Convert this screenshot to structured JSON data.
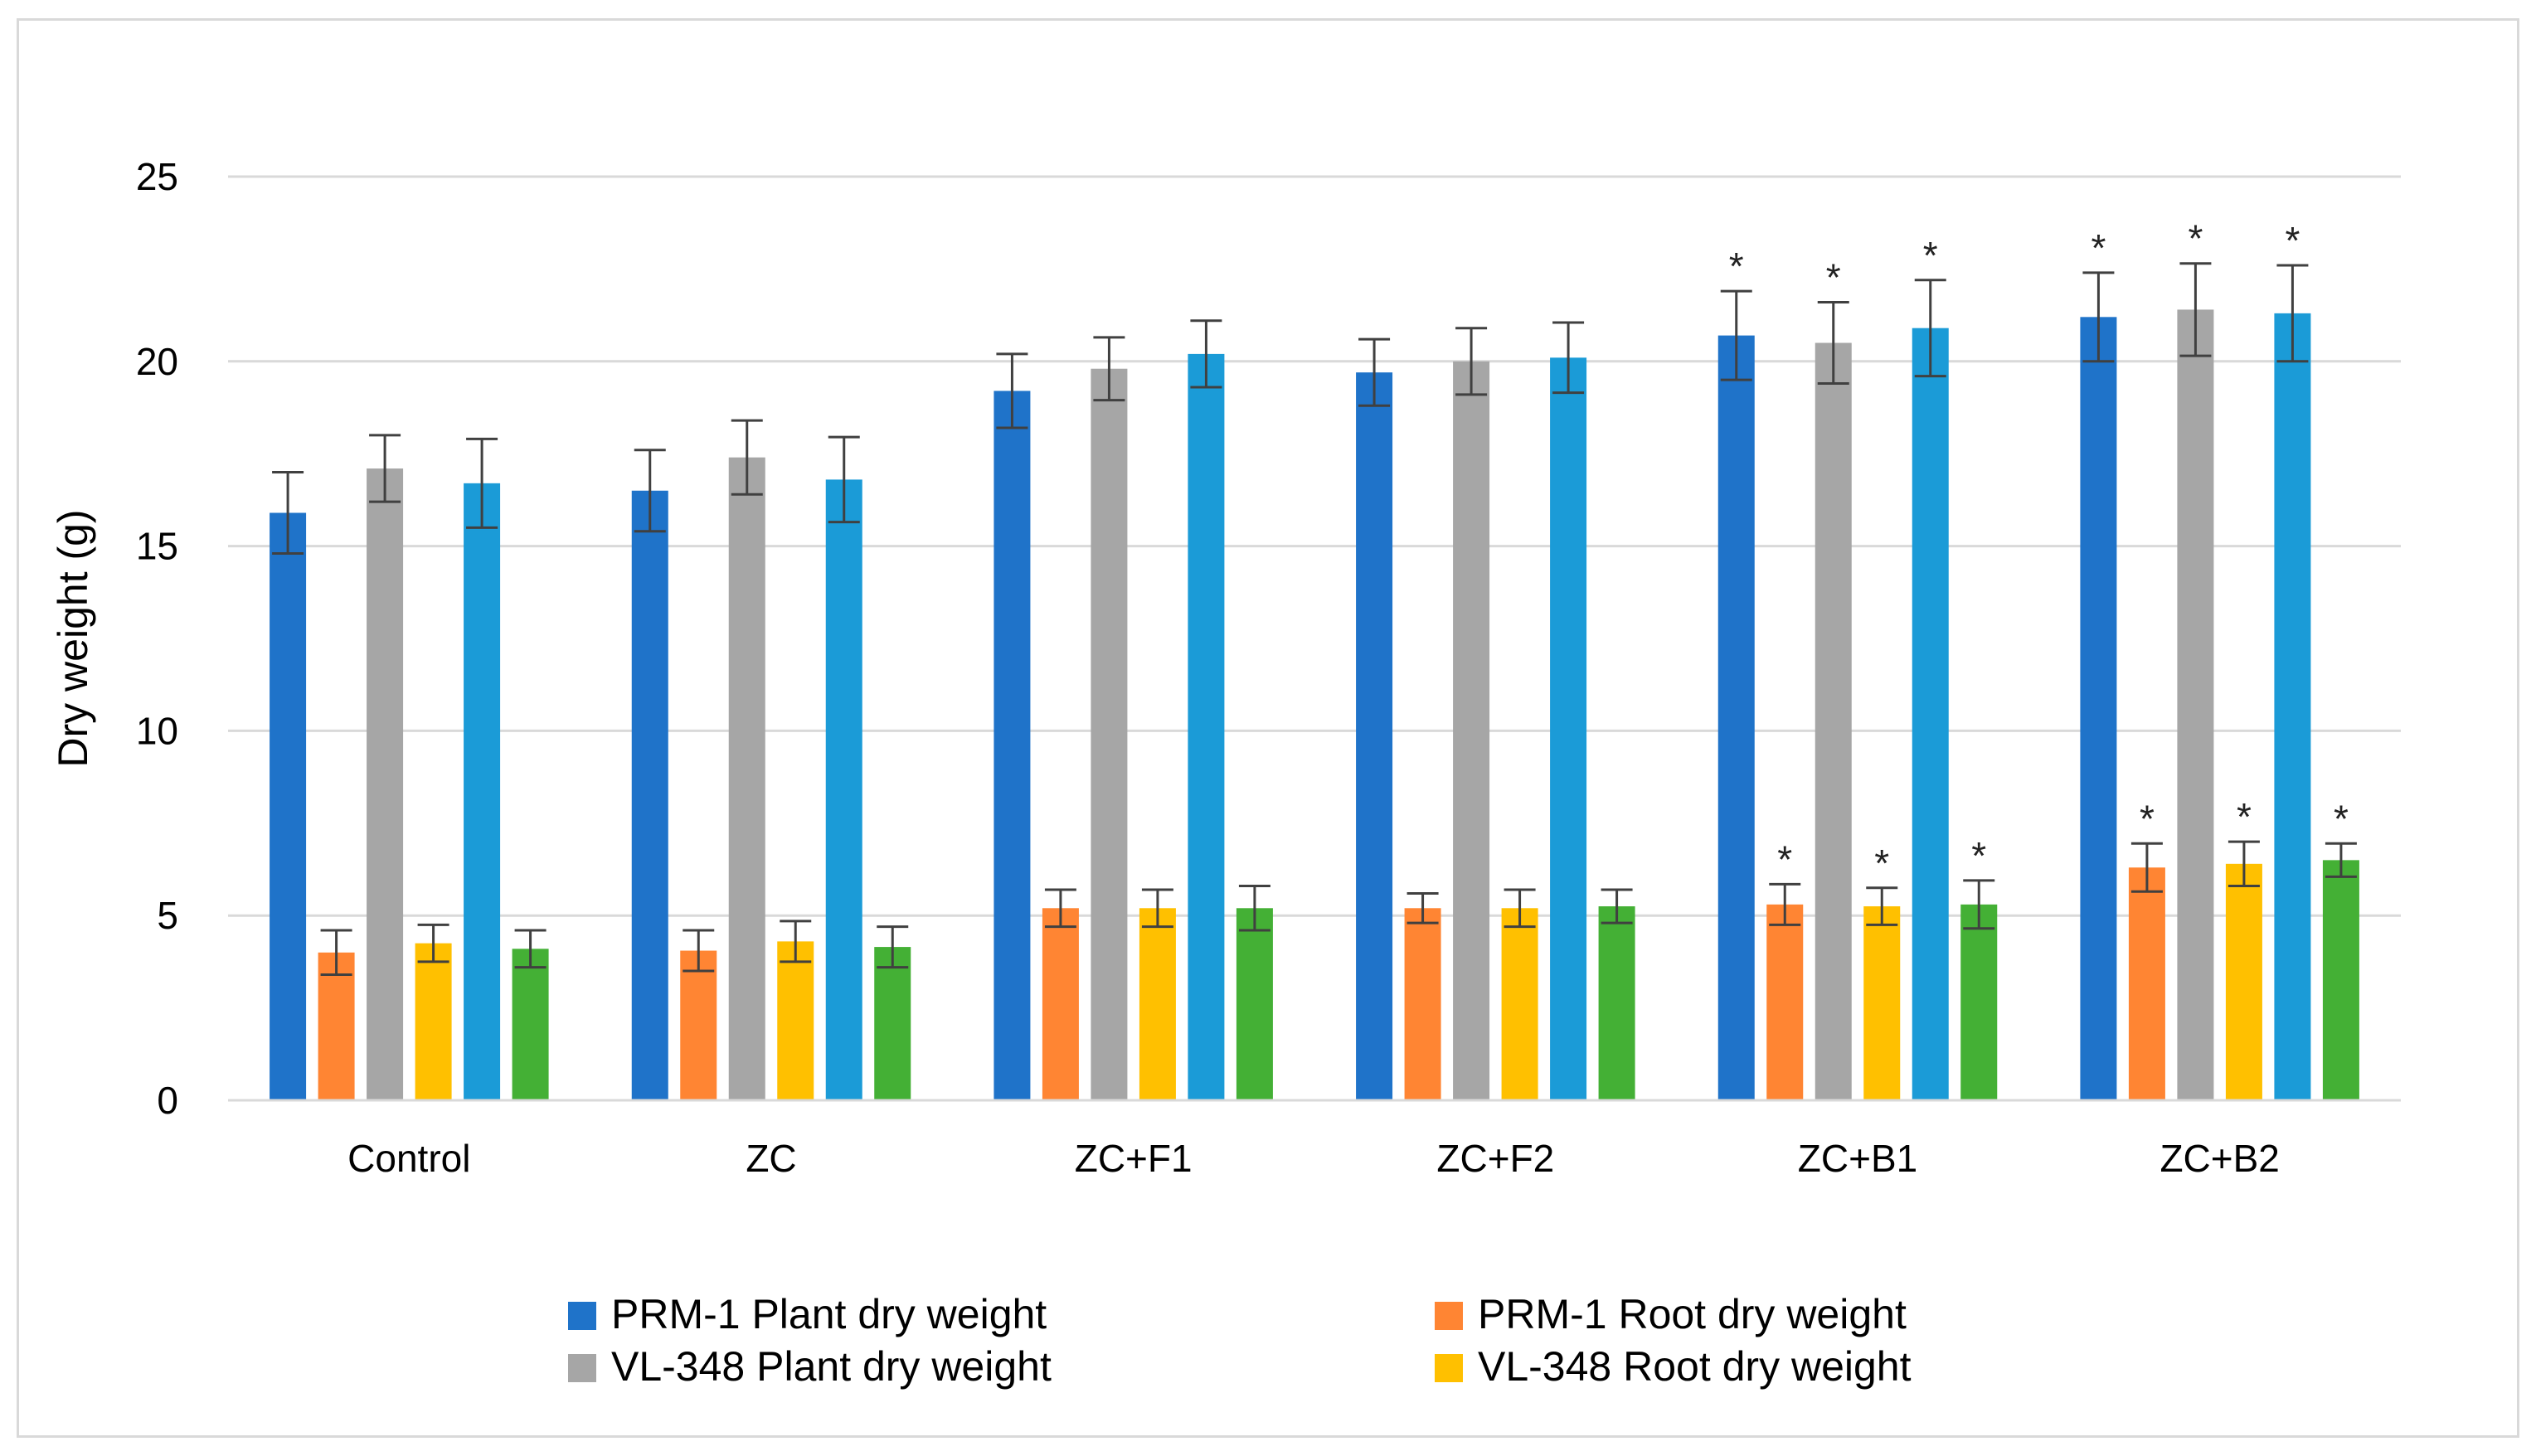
{
  "chart_data": {
    "type": "bar",
    "title": "",
    "xlabel": "",
    "ylabel": "Dry weight (g)",
    "ylim": [
      0,
      25
    ],
    "yticks": [
      0,
      5,
      10,
      15,
      20,
      25
    ],
    "grid": true,
    "legend_position": "bottom",
    "categories": [
      "Control",
      "ZC",
      "ZC+F1",
      "ZC+F2",
      "ZC+B1",
      "ZC+B2"
    ],
    "series": [
      {
        "name": "PRM-1 Plant dry weight",
        "color": "#1f73c9",
        "in_legend": true,
        "values": [
          15.9,
          16.5,
          19.2,
          19.7,
          20.7,
          21.2
        ],
        "errors": [
          1.1,
          1.1,
          1.0,
          0.9,
          1.2,
          1.2
        ],
        "significant": [
          false,
          false,
          false,
          false,
          true,
          true
        ]
      },
      {
        "name": "PRM-1 Root dry weight",
        "color": "#ff8533",
        "in_legend": true,
        "values": [
          4.0,
          4.05,
          5.2,
          5.2,
          5.3,
          6.3
        ],
        "errors": [
          0.6,
          0.55,
          0.5,
          0.4,
          0.55,
          0.65
        ],
        "significant": [
          false,
          false,
          false,
          false,
          true,
          true
        ]
      },
      {
        "name": "VL-348 Plant dry weight",
        "color": "#a6a6a6",
        "in_legend": true,
        "values": [
          17.1,
          17.4,
          19.8,
          20.0,
          20.5,
          21.4
        ],
        "errors": [
          0.9,
          1.0,
          0.85,
          0.9,
          1.1,
          1.25
        ],
        "significant": [
          false,
          false,
          false,
          false,
          true,
          true
        ]
      },
      {
        "name": "VL-348 Root dry weight",
        "color": "#ffc000",
        "in_legend": true,
        "values": [
          4.25,
          4.3,
          5.2,
          5.2,
          5.25,
          6.4
        ],
        "errors": [
          0.5,
          0.55,
          0.5,
          0.5,
          0.5,
          0.6
        ],
        "significant": [
          false,
          false,
          false,
          false,
          true,
          true
        ]
      },
      {
        "name": "",
        "color": "#1b9bd7",
        "in_legend": false,
        "values": [
          16.7,
          16.8,
          20.2,
          20.1,
          20.9,
          21.3
        ],
        "errors": [
          1.2,
          1.15,
          0.9,
          0.95,
          1.3,
          1.3
        ],
        "significant": [
          false,
          false,
          false,
          false,
          true,
          true
        ]
      },
      {
        "name": "",
        "color": "#44b035",
        "in_legend": false,
        "values": [
          4.1,
          4.15,
          5.2,
          5.25,
          5.3,
          6.5
        ],
        "errors": [
          0.5,
          0.55,
          0.6,
          0.45,
          0.65,
          0.45
        ],
        "significant": [
          false,
          false,
          false,
          false,
          true,
          true
        ]
      }
    ],
    "significance_marker": "*"
  }
}
